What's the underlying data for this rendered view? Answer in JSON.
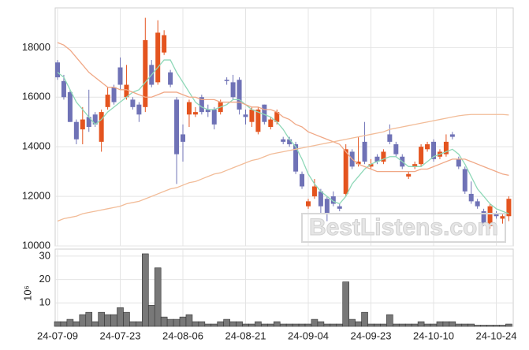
{
  "chart_data": [
    {
      "type": "candlestick",
      "categories": [
        "24-07-09",
        null,
        null,
        null,
        null,
        null,
        null,
        null,
        null,
        null,
        "24-07-23",
        null,
        null,
        null,
        null,
        null,
        null,
        null,
        null,
        null,
        "24-08-06",
        null,
        null,
        null,
        null,
        null,
        null,
        null,
        null,
        null,
        "24-08-21",
        null,
        null,
        null,
        null,
        null,
        null,
        null,
        null,
        null,
        "24-09-04",
        null,
        null,
        null,
        null,
        null,
        null,
        null,
        null,
        null,
        "24-09-23",
        null,
        null,
        null,
        null,
        null,
        null,
        null,
        null,
        null,
        "24-10-10",
        null,
        null,
        null,
        null,
        null,
        null,
        null,
        null,
        null,
        "24-10-24",
        null,
        null
      ],
      "open": [
        17400,
        16650,
        16200,
        15000,
        14700,
        15200,
        15300,
        14200,
        15600,
        16400,
        17200,
        16000,
        15900,
        15700,
        15600,
        17300,
        16600,
        17800,
        17000,
        15900,
        14500,
        15300,
        15300,
        16000,
        15500,
        15500,
        15400,
        16700,
        16600,
        16700,
        15300,
        15000,
        14600,
        15700,
        14800,
        15000,
        14300,
        14300,
        14100,
        12900,
        11600,
        12000,
        12200,
        11900,
        12000,
        11600,
        12100,
        13800,
        13300,
        14200,
        13200,
        13600,
        13400,
        14500,
        14100,
        13600,
        12800,
        13200,
        13300,
        13900,
        14200,
        13600,
        13700,
        14500,
        13500,
        13100,
        12100,
        11800,
        11400,
        10800,
        11300,
        11100,
        11200
      ],
      "high": [
        17500,
        16900,
        16300,
        15100,
        15600,
        16300,
        15400,
        15500,
        16400,
        16500,
        17600,
        17300,
        16000,
        15800,
        19200,
        17500,
        19100,
        18700,
        17100,
        16000,
        14900,
        15900,
        15600,
        16100,
        15700,
        15600,
        15900,
        16800,
        16900,
        16800,
        15500,
        15600,
        15600,
        15700,
        15200,
        15500,
        14400,
        14400,
        14200,
        13000,
        11900,
        12700,
        12300,
        12000,
        12200,
        11700,
        14100,
        13900,
        14400,
        15000,
        13500,
        13700,
        13900,
        14900,
        14200,
        13700,
        13000,
        13400,
        14100,
        14200,
        14300,
        13900,
        14500,
        14600,
        13600,
        13200,
        12600,
        11900,
        11500,
        11700,
        11400,
        11300,
        12000
      ],
      "low": [
        16700,
        15900,
        15000,
        14100,
        14100,
        14600,
        14800,
        13800,
        15500,
        15700,
        16300,
        15900,
        15500,
        15000,
        15400,
        16400,
        16500,
        17700,
        16400,
        12500,
        13400,
        14800,
        15200,
        15300,
        15200,
        14700,
        15300,
        16500,
        15900,
        15300,
        14900,
        14800,
        14500,
        14900,
        14700,
        14900,
        14100,
        14000,
        12900,
        12300,
        11500,
        11900,
        11300,
        11000,
        11600,
        11400,
        12000,
        13100,
        13200,
        13300,
        13100,
        13300,
        13300,
        14100,
        13600,
        13100,
        12700,
        13100,
        13200,
        13800,
        13400,
        13500,
        13600,
        14300,
        13100,
        12100,
        11700,
        11500,
        10800,
        10700,
        11100,
        10900,
        11000
      ],
      "close": [
        16800,
        16000,
        15000,
        14300,
        15100,
        14800,
        14900,
        15400,
        16100,
        15800,
        16500,
        16500,
        15600,
        15300,
        18300,
        16500,
        18600,
        18500,
        16500,
        13700,
        14200,
        15800,
        15400,
        15400,
        15400,
        14900,
        15800,
        16650,
        16000,
        15500,
        15200,
        15500,
        15500,
        15000,
        15100,
        15400,
        14200,
        14100,
        13000,
        12400,
        11800,
        12400,
        11600,
        11300,
        11700,
        11500,
        13900,
        13200,
        13400,
        13400,
        13300,
        13400,
        13800,
        14200,
        13700,
        13200,
        12900,
        13300,
        14000,
        14100,
        13500,
        13800,
        14200,
        14400,
        13200,
        12200,
        11800,
        11600,
        10900,
        11600,
        11200,
        11200,
        11900
      ],
      "up_color": "#e4541f",
      "down_color": "#6f72b6",
      "series": [
        {
          "color": "#8fd8b8",
          "values": [
            17000,
            16800,
            16300,
            15800,
            15500,
            15200,
            14900,
            15100,
            15400,
            15600,
            15800,
            16000,
            16200,
            16300,
            16600,
            16900,
            17200,
            17500,
            17500,
            17000,
            16600,
            16200,
            15800,
            15600,
            15500,
            15500,
            15600,
            15700,
            15900,
            15900,
            15700,
            15500,
            15400,
            15300,
            15200,
            15000,
            14700,
            14300,
            14000,
            13500,
            12900,
            12500,
            12200,
            12000,
            11800,
            11700,
            12000,
            12500,
            12800,
            13100,
            13300,
            13400,
            13500,
            13600,
            13600,
            13400,
            13200,
            13200,
            13200,
            13400,
            13600,
            13700,
            13800,
            13900,
            13700,
            13300,
            12800,
            12300,
            12000,
            11700,
            11500,
            11400,
            11300
          ]
        },
        {
          "color": "#f0a886",
          "values": [
            18200,
            18100,
            17900,
            17600,
            17300,
            17000,
            16800,
            16600,
            16400,
            16400,
            16300,
            16300,
            16200,
            16100,
            16000,
            16000,
            16100,
            16200,
            16200,
            16200,
            16100,
            16000,
            16000,
            15900,
            15900,
            15900,
            15800,
            15800,
            15800,
            15800,
            15700,
            15600,
            15600,
            15500,
            15500,
            15400,
            15200,
            15100,
            14900,
            14800,
            14600,
            14500,
            14400,
            14300,
            14200,
            14100,
            13800,
            13500,
            13300,
            13200,
            13100,
            13000,
            13000,
            13000,
            13000,
            13000,
            13000,
            13000,
            13100,
            13100,
            13200,
            13300,
            13400,
            13500,
            13500,
            13500,
            13400,
            13300,
            13200,
            13100,
            13000,
            12900,
            12850
          ]
        },
        {
          "color": "#f2bc98",
          "values": [
            11000,
            11100,
            11150,
            11200,
            11300,
            11350,
            11400,
            11450,
            11500,
            11550,
            11600,
            11700,
            11750,
            11800,
            11900,
            12000,
            12100,
            12200,
            12300,
            12350,
            12450,
            12550,
            12600,
            12700,
            12800,
            12900,
            12950,
            13050,
            13150,
            13250,
            13350,
            13450,
            13500,
            13600,
            13700,
            13750,
            13800,
            13850,
            13900,
            13950,
            14000,
            14050,
            14100,
            14150,
            14200,
            14250,
            14300,
            14350,
            14400,
            14450,
            14500,
            14550,
            14600,
            14700,
            14750,
            14800,
            14850,
            14900,
            14950,
            15000,
            15050,
            15100,
            15150,
            15200,
            15250,
            15280,
            15300,
            15300,
            15300,
            15300,
            15300,
            15300,
            15280
          ]
        }
      ],
      "ylim": [
        10000,
        19600
      ],
      "yticks": [
        10000,
        12000,
        14000,
        16000,
        18000
      ],
      "grid": true,
      "watermark": "BestListens.com"
    },
    {
      "type": "bar",
      "y_label": "10⁶",
      "color": "#787878",
      "values": [
        2,
        2,
        3,
        2,
        5,
        6,
        2,
        6,
        5,
        5,
        8,
        6,
        2,
        2,
        31,
        9,
        25,
        4,
        3,
        3,
        4,
        5,
        2,
        2,
        1,
        1,
        2,
        3,
        2,
        2,
        1,
        1,
        2,
        1,
        1,
        2,
        1,
        1,
        1,
        1,
        1,
        3,
        2,
        1,
        1,
        1,
        19,
        3,
        2,
        6,
        1,
        1,
        1,
        5,
        1,
        1,
        1,
        1,
        2,
        1,
        1,
        2,
        2,
        2,
        1,
        1,
        1,
        0.5,
        0.5,
        0.5,
        0.5,
        0.5,
        1
      ],
      "ylim": [
        0,
        33
      ],
      "yticks": [
        10,
        20,
        30
      ],
      "grid": true
    }
  ]
}
